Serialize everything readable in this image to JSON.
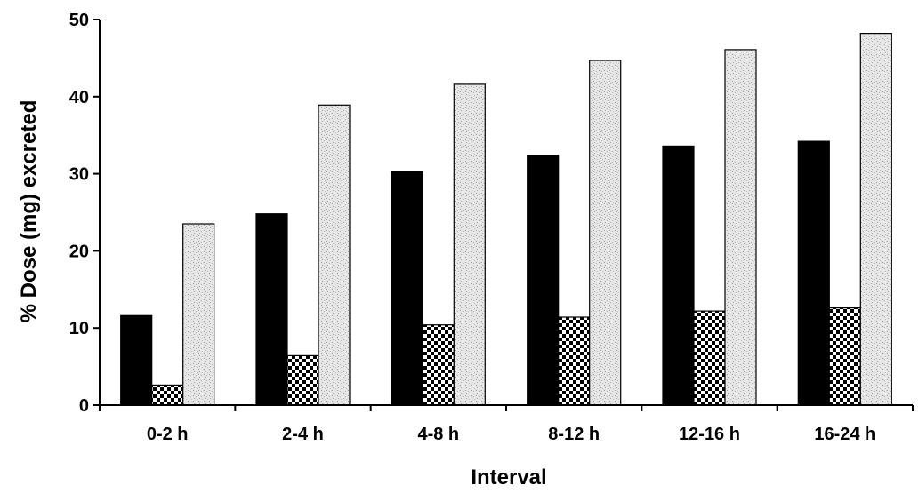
{
  "chart_data": {
    "type": "bar",
    "title": "",
    "xlabel": "Interval",
    "ylabel": "% Dose (mg) excreted",
    "ylim": [
      0,
      50
    ],
    "yticks": [
      0,
      10,
      20,
      30,
      40,
      50
    ],
    "grid": false,
    "legend": "none",
    "categories": [
      "0-2 h",
      "2-4 h",
      "4-8 h",
      "8-12 h",
      "12-16 h",
      "16-24 h"
    ],
    "series": [
      {
        "fill": "solid-black",
        "color": "#000000",
        "values": [
          11.6,
          24.8,
          30.3,
          32.4,
          33.6,
          34.2
        ]
      },
      {
        "fill": "checkered",
        "color": "#000000",
        "values": [
          2.6,
          6.4,
          10.4,
          11.4,
          12.2,
          12.6
        ]
      },
      {
        "fill": "light-gray-stipple",
        "color": "#d9d9d9",
        "values": [
          23.5,
          38.9,
          41.6,
          44.7,
          46.1,
          48.2
        ]
      }
    ]
  }
}
